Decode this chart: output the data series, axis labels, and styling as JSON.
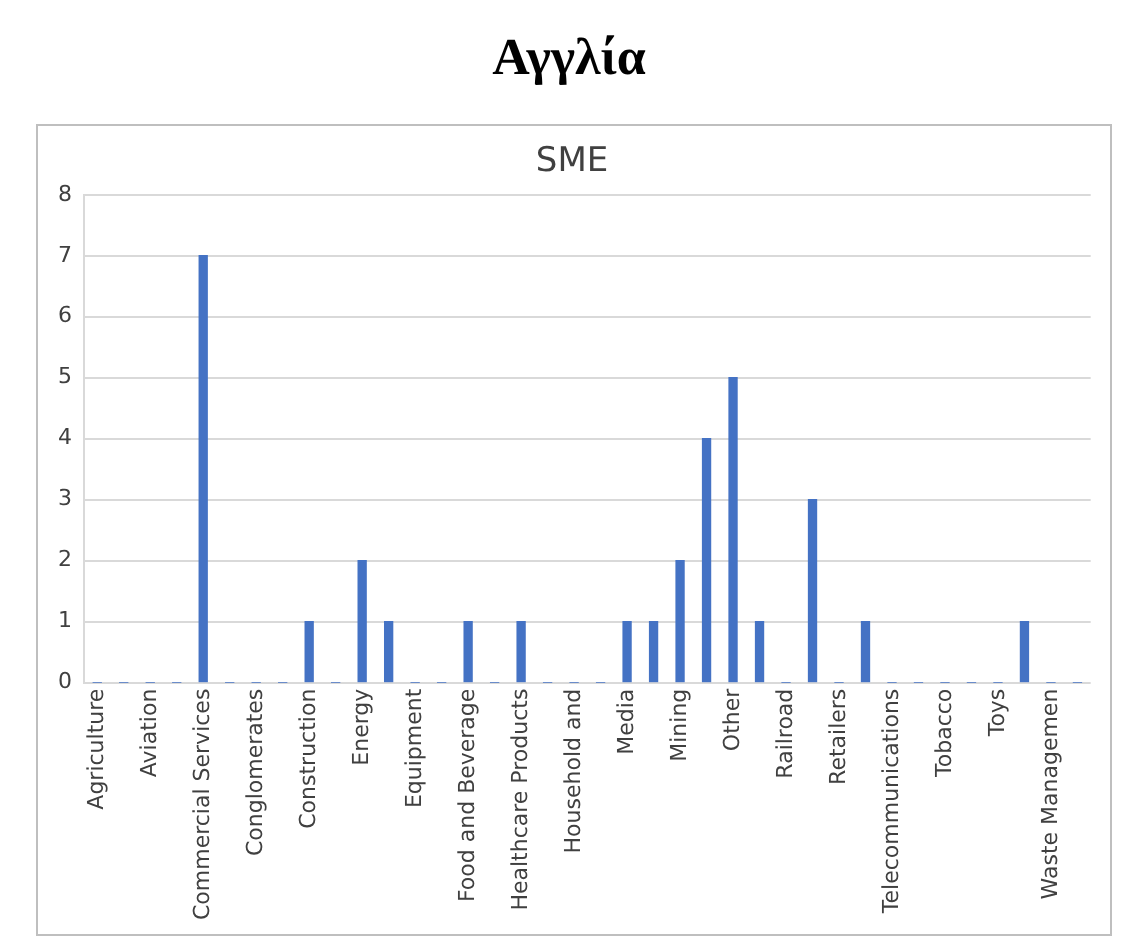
{
  "chart_data": {
    "type": "bar",
    "title": "Αγγλία",
    "subtitle": "SME",
    "categories": [
      "Agriculture",
      null,
      "Aviation",
      null,
      "Commercial Services",
      null,
      "Conglomerates",
      null,
      "Construction",
      null,
      "Energy",
      null,
      "Equipment",
      null,
      "Food and Beverage",
      null,
      "Healthcare Products",
      null,
      "Household and",
      null,
      "Media",
      null,
      "Mining",
      null,
      "Other",
      null,
      "Railroad",
      null,
      "Retailers",
      null,
      "Telecommunications",
      null,
      "Tobacco",
      null,
      "Toys",
      null,
      "Waste Managemen",
      null
    ],
    "values": [
      0,
      0,
      0,
      0,
      7,
      0,
      0,
      0,
      1,
      0,
      2,
      1,
      0,
      0,
      1,
      0,
      1,
      0,
      0,
      0,
      1,
      1,
      2,
      4,
      5,
      1,
      0,
      3,
      0,
      1,
      0,
      0,
      0,
      0,
      0,
      1,
      0,
      0
    ],
    "color": "#4472c4",
    "ylim": [
      0,
      8
    ],
    "yticks": [
      0,
      1,
      2,
      3,
      4,
      5,
      6,
      7,
      8
    ],
    "grid": "y",
    "legend": false
  }
}
